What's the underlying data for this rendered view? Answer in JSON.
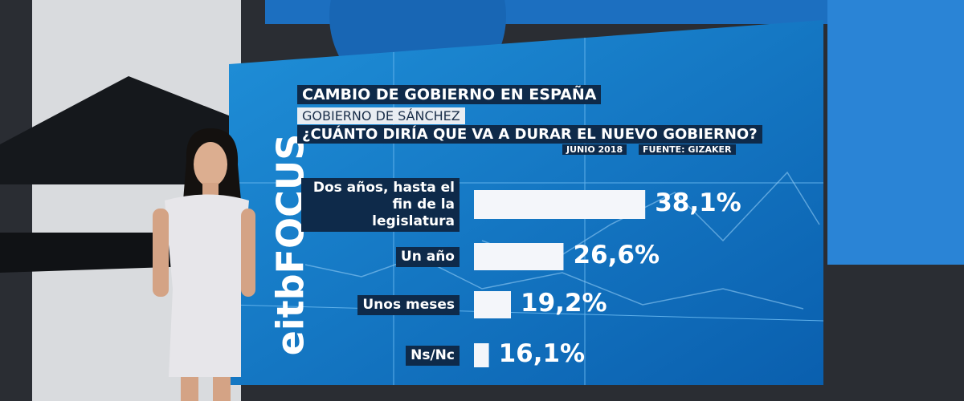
{
  "brand": "eitbFOCUS",
  "chart_data": {
    "type": "bar",
    "orientation": "horizontal",
    "title": "CAMBIO DE GOBIERNO EN ESPAÑA",
    "subtitle": "GOBIERNO DE SÁNCHEZ",
    "question": "¿CUÁNTO DIRÍA QUE VA A DURAR EL NUEVO GOBIERNO?",
    "date": "JUNIO 2018",
    "source": "FUENTE: GIZAKER",
    "categories": [
      "Dos años, hasta el fin de la legislatura",
      "Un año",
      "Unos meses",
      "Ns/Nc"
    ],
    "values": [
      38.1,
      26.6,
      19.2,
      16.1
    ],
    "value_labels": [
      "38,1%",
      "26,6%",
      "19,2%",
      "16,1%"
    ],
    "color": "#f4f6fa",
    "xlim": [
      14,
      40
    ]
  }
}
